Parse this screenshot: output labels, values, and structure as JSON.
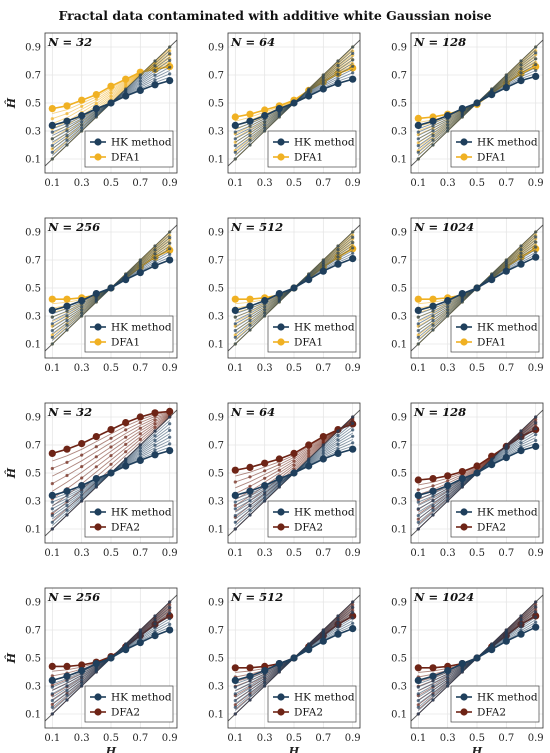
{
  "title": "Fractal data contaminated with additive white Gaussian noise",
  "colors": {
    "hk": "#1f3f5c",
    "dfa1": "#f0b123",
    "dfa2": "#6e2416",
    "reference_line": "#555555",
    "grid": "#e6e6e6"
  },
  "chart_data": [
    {
      "type": "line",
      "panel_label": "N = 32",
      "xlabel": "",
      "ylabel": "Ĥ",
      "xlim": [
        0.05,
        0.95
      ],
      "ylim": [
        0,
        1
      ],
      "x": [
        0.1,
        0.2,
        0.3,
        0.4,
        0.5,
        0.6,
        0.7,
        0.8,
        0.9
      ],
      "xticks": [
        "0.1",
        "0.3",
        "0.5",
        "0.7",
        "0.9"
      ],
      "yticks": [
        "0.1",
        "0.3",
        "0.5",
        "0.7",
        "0.9"
      ],
      "grid": true,
      "legend": "bottom-right",
      "series": [
        {
          "name": "HK method",
          "values": [
            0.34,
            0.37,
            0.41,
            0.46,
            0.5,
            0.55,
            0.59,
            0.63,
            0.66
          ]
        },
        {
          "name": "DFA1",
          "values": [
            0.46,
            0.48,
            0.52,
            0.56,
            0.62,
            0.67,
            0.72,
            0.74,
            0.76
          ]
        }
      ]
    },
    {
      "type": "line",
      "panel_label": "N = 64",
      "xlabel": "",
      "ylabel": "",
      "xlim": [
        0.05,
        0.95
      ],
      "ylim": [
        0,
        1
      ],
      "x": [
        0.1,
        0.2,
        0.3,
        0.4,
        0.5,
        0.6,
        0.7,
        0.8,
        0.9
      ],
      "xticks": [
        "0.1",
        "0.3",
        "0.5",
        "0.7",
        "0.9"
      ],
      "yticks": [
        "0.1",
        "0.3",
        "0.5",
        "0.7",
        "0.9"
      ],
      "grid": true,
      "legend": "bottom-right",
      "series": [
        {
          "name": "HK method",
          "values": [
            0.34,
            0.37,
            0.41,
            0.46,
            0.5,
            0.55,
            0.6,
            0.64,
            0.67
          ]
        },
        {
          "name": "DFA1",
          "values": [
            0.4,
            0.42,
            0.45,
            0.48,
            0.52,
            0.59,
            0.65,
            0.71,
            0.75
          ]
        }
      ]
    },
    {
      "type": "line",
      "panel_label": "N = 128",
      "xlabel": "",
      "ylabel": "",
      "xlim": [
        0.05,
        0.95
      ],
      "ylim": [
        0,
        1
      ],
      "x": [
        0.1,
        0.2,
        0.3,
        0.4,
        0.5,
        0.6,
        0.7,
        0.8,
        0.9
      ],
      "xticks": [
        "0.1",
        "0.3",
        "0.5",
        "0.7",
        "0.9"
      ],
      "yticks": [
        "0.1",
        "0.3",
        "0.5",
        "0.7",
        "0.9"
      ],
      "grid": true,
      "legend": "bottom-right",
      "series": [
        {
          "name": "HK method",
          "values": [
            0.34,
            0.37,
            0.41,
            0.46,
            0.5,
            0.56,
            0.61,
            0.66,
            0.69
          ]
        },
        {
          "name": "DFA1",
          "values": [
            0.39,
            0.4,
            0.42,
            0.45,
            0.49,
            0.57,
            0.64,
            0.71,
            0.76
          ]
        }
      ]
    },
    {
      "type": "line",
      "panel_label": "N = 256",
      "xlabel": "",
      "ylabel": "",
      "xlim": [
        0.05,
        0.95
      ],
      "ylim": [
        0,
        1
      ],
      "x": [
        0.1,
        0.2,
        0.3,
        0.4,
        0.5,
        0.6,
        0.7,
        0.8,
        0.9
      ],
      "xticks": [
        "0.1",
        "0.3",
        "0.5",
        "0.7",
        "0.9"
      ],
      "yticks": [
        "0.1",
        "0.3",
        "0.5",
        "0.7",
        "0.9"
      ],
      "grid": true,
      "legend": "bottom-right",
      "series": [
        {
          "name": "HK method",
          "values": [
            0.34,
            0.37,
            0.41,
            0.46,
            0.5,
            0.56,
            0.61,
            0.66,
            0.7
          ]
        },
        {
          "name": "DFA1",
          "values": [
            0.42,
            0.42,
            0.43,
            0.45,
            0.5,
            0.57,
            0.65,
            0.72,
            0.77
          ]
        }
      ]
    },
    {
      "type": "line",
      "panel_label": "N = 512",
      "xlabel": "",
      "ylabel": "",
      "xlim": [
        0.05,
        0.95
      ],
      "ylim": [
        0,
        1
      ],
      "x": [
        0.1,
        0.2,
        0.3,
        0.4,
        0.5,
        0.6,
        0.7,
        0.8,
        0.9
      ],
      "xticks": [
        "0.1",
        "0.3",
        "0.5",
        "0.7",
        "0.9"
      ],
      "yticks": [
        "0.1",
        "0.3",
        "0.5",
        "0.7",
        "0.9"
      ],
      "grid": true,
      "legend": "bottom-right",
      "series": [
        {
          "name": "HK method",
          "values": [
            0.34,
            0.37,
            0.41,
            0.46,
            0.5,
            0.56,
            0.62,
            0.67,
            0.71
          ]
        },
        {
          "name": "DFA1",
          "values": [
            0.42,
            0.42,
            0.43,
            0.45,
            0.5,
            0.57,
            0.65,
            0.72,
            0.78
          ]
        }
      ]
    },
    {
      "type": "line",
      "panel_label": "N = 1024",
      "xlabel": "",
      "ylabel": "",
      "xlim": [
        0.05,
        0.95
      ],
      "ylim": [
        0,
        1
      ],
      "x": [
        0.1,
        0.2,
        0.3,
        0.4,
        0.5,
        0.6,
        0.7,
        0.8,
        0.9
      ],
      "xticks": [
        "0.1",
        "0.3",
        "0.5",
        "0.7",
        "0.9"
      ],
      "yticks": [
        "0.1",
        "0.3",
        "0.5",
        "0.7",
        "0.9"
      ],
      "grid": true,
      "legend": "bottom-right",
      "series": [
        {
          "name": "HK method",
          "values": [
            0.34,
            0.37,
            0.41,
            0.46,
            0.5,
            0.56,
            0.62,
            0.67,
            0.72
          ]
        },
        {
          "name": "DFA1",
          "values": [
            0.42,
            0.42,
            0.43,
            0.45,
            0.5,
            0.57,
            0.65,
            0.72,
            0.78
          ]
        }
      ]
    },
    {
      "type": "line",
      "panel_label": "N = 32",
      "xlabel": "",
      "ylabel": "Ĥ",
      "xlim": [
        0.05,
        0.95
      ],
      "ylim": [
        0,
        1
      ],
      "x": [
        0.1,
        0.2,
        0.3,
        0.4,
        0.5,
        0.6,
        0.7,
        0.8,
        0.9
      ],
      "xticks": [
        "0.1",
        "0.3",
        "0.5",
        "0.7",
        "0.9"
      ],
      "yticks": [
        "0.1",
        "0.3",
        "0.5",
        "0.7",
        "0.9"
      ],
      "grid": true,
      "legend": "bottom-right",
      "series": [
        {
          "name": "HK method",
          "values": [
            0.34,
            0.37,
            0.41,
            0.46,
            0.5,
            0.55,
            0.59,
            0.63,
            0.66
          ]
        },
        {
          "name": "DFA2",
          "values": [
            0.64,
            0.67,
            0.71,
            0.76,
            0.81,
            0.86,
            0.9,
            0.93,
            0.94
          ]
        }
      ]
    },
    {
      "type": "line",
      "panel_label": "N = 64",
      "xlabel": "",
      "ylabel": "",
      "xlim": [
        0.05,
        0.95
      ],
      "ylim": [
        0,
        1
      ],
      "x": [
        0.1,
        0.2,
        0.3,
        0.4,
        0.5,
        0.6,
        0.7,
        0.8,
        0.9
      ],
      "xticks": [
        "0.1",
        "0.3",
        "0.5",
        "0.7",
        "0.9"
      ],
      "yticks": [
        "0.1",
        "0.3",
        "0.5",
        "0.7",
        "0.9"
      ],
      "grid": true,
      "legend": "bottom-right",
      "series": [
        {
          "name": "HK method",
          "values": [
            0.34,
            0.37,
            0.41,
            0.46,
            0.5,
            0.55,
            0.6,
            0.64,
            0.67
          ]
        },
        {
          "name": "DFA2",
          "values": [
            0.52,
            0.54,
            0.57,
            0.6,
            0.64,
            0.7,
            0.76,
            0.81,
            0.85
          ]
        }
      ]
    },
    {
      "type": "line",
      "panel_label": "N = 128",
      "xlabel": "",
      "ylabel": "",
      "xlim": [
        0.05,
        0.95
      ],
      "ylim": [
        0,
        1
      ],
      "x": [
        0.1,
        0.2,
        0.3,
        0.4,
        0.5,
        0.6,
        0.7,
        0.8,
        0.9
      ],
      "xticks": [
        "0.1",
        "0.3",
        "0.5",
        "0.7",
        "0.9"
      ],
      "yticks": [
        "0.1",
        "0.3",
        "0.5",
        "0.7",
        "0.9"
      ],
      "grid": true,
      "legend": "bottom-right",
      "series": [
        {
          "name": "HK method",
          "values": [
            0.34,
            0.37,
            0.41,
            0.46,
            0.5,
            0.56,
            0.61,
            0.66,
            0.69
          ]
        },
        {
          "name": "DFA2",
          "values": [
            0.45,
            0.46,
            0.48,
            0.51,
            0.55,
            0.62,
            0.69,
            0.76,
            0.81
          ]
        }
      ]
    },
    {
      "type": "line",
      "panel_label": "N = 256",
      "xlabel": "H",
      "ylabel": "Ĥ",
      "xlim": [
        0.05,
        0.95
      ],
      "ylim": [
        0,
        1
      ],
      "x": [
        0.1,
        0.2,
        0.3,
        0.4,
        0.5,
        0.6,
        0.7,
        0.8,
        0.9
      ],
      "xticks": [
        "0.1",
        "0.3",
        "0.5",
        "0.7",
        "0.9"
      ],
      "yticks": [
        "0.1",
        "0.3",
        "0.5",
        "0.7",
        "0.9"
      ],
      "grid": true,
      "legend": "bottom-right",
      "series": [
        {
          "name": "HK method",
          "values": [
            0.34,
            0.37,
            0.41,
            0.46,
            0.5,
            0.56,
            0.61,
            0.66,
            0.7
          ]
        },
        {
          "name": "DFA2",
          "values": [
            0.44,
            0.44,
            0.45,
            0.47,
            0.51,
            0.58,
            0.66,
            0.74,
            0.8
          ]
        }
      ]
    },
    {
      "type": "line",
      "panel_label": "N = 512",
      "xlabel": "H",
      "ylabel": "",
      "xlim": [
        0.05,
        0.95
      ],
      "ylim": [
        0,
        1
      ],
      "x": [
        0.1,
        0.2,
        0.3,
        0.4,
        0.5,
        0.6,
        0.7,
        0.8,
        0.9
      ],
      "xticks": [
        "0.1",
        "0.3",
        "0.5",
        "0.7",
        "0.9"
      ],
      "yticks": [
        "0.1",
        "0.3",
        "0.5",
        "0.7",
        "0.9"
      ],
      "grid": true,
      "legend": "bottom-right",
      "series": [
        {
          "name": "HK method",
          "values": [
            0.34,
            0.37,
            0.41,
            0.46,
            0.5,
            0.56,
            0.62,
            0.67,
            0.71
          ]
        },
        {
          "name": "DFA2",
          "values": [
            0.43,
            0.43,
            0.44,
            0.46,
            0.5,
            0.58,
            0.66,
            0.74,
            0.8
          ]
        }
      ]
    },
    {
      "type": "line",
      "panel_label": "N = 1024",
      "xlabel": "H",
      "ylabel": "",
      "xlim": [
        0.05,
        0.95
      ],
      "ylim": [
        0,
        1
      ],
      "x": [
        0.1,
        0.2,
        0.3,
        0.4,
        0.5,
        0.6,
        0.7,
        0.8,
        0.9
      ],
      "xticks": [
        "0.1",
        "0.3",
        "0.5",
        "0.7",
        "0.9"
      ],
      "yticks": [
        "0.1",
        "0.3",
        "0.5",
        "0.7",
        "0.9"
      ],
      "grid": true,
      "legend": "bottom-right",
      "series": [
        {
          "name": "HK method",
          "values": [
            0.34,
            0.37,
            0.41,
            0.46,
            0.5,
            0.56,
            0.62,
            0.67,
            0.72
          ]
        },
        {
          "name": "DFA2",
          "values": [
            0.43,
            0.43,
            0.44,
            0.46,
            0.5,
            0.58,
            0.66,
            0.74,
            0.8
          ]
        }
      ]
    }
  ]
}
